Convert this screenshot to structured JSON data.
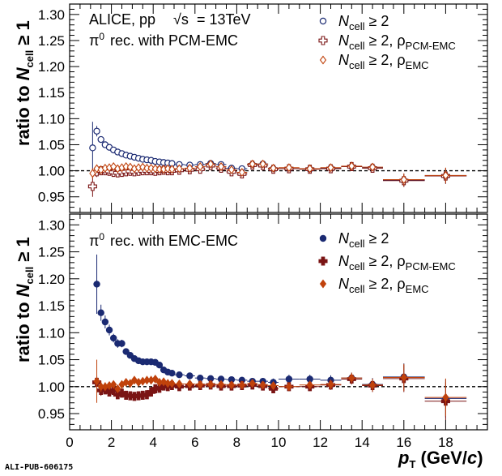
{
  "footer": "ALI-PUB-606175",
  "colors": {
    "blue": "#1b2a72",
    "maroon": "#7a1414",
    "orange": "#c0420c",
    "axis": "#000000"
  },
  "chart_data": [
    {
      "type": "scatter",
      "panel": "top",
      "annotations": [
        "ALICE, pp",
        "= 13TeV",
        "rec. with PCM-EMC"
      ],
      "ylabel": "ratio to N_cell ≥ 1",
      "xlim": [
        0,
        20
      ],
      "ylim": [
        0.92,
        1.32
      ],
      "yticks": [
        0.95,
        1.0,
        1.05,
        1.1,
        1.15,
        1.2,
        1.25,
        1.3
      ],
      "ytick_labels": [
        "0.95",
        "1.00",
        "1.05",
        "1.10",
        "1.15",
        "1.20",
        "1.25",
        "1.30"
      ],
      "reference_line": 1.0,
      "legend_position": "top-right",
      "series": [
        {
          "name": "N_cell ≥ 2",
          "marker": "open-circle",
          "color": "blue",
          "x": [
            1.1,
            1.3,
            1.5,
            1.7,
            1.9,
            2.1,
            2.3,
            2.5,
            2.7,
            2.9,
            3.1,
            3.3,
            3.5,
            3.7,
            3.9,
            4.1,
            4.3,
            4.5,
            4.7,
            4.9,
            5.25,
            5.75,
            6.25,
            6.75,
            7.25,
            7.75,
            8.25,
            8.75,
            9.25,
            9.75,
            10.5,
            11.5,
            12.5,
            13.5,
            14.5,
            16,
            18
          ],
          "y": [
            1.044,
            1.076,
            1.06,
            1.05,
            1.045,
            1.04,
            1.036,
            1.033,
            1.03,
            1.028,
            1.026,
            1.024,
            1.022,
            1.021,
            1.02,
            1.018,
            1.017,
            1.016,
            1.015,
            1.014,
            1.012,
            1.011,
            1.012,
            1.014,
            1.012,
            1.005,
            1.004,
            1.012,
            1.013,
            1.004,
            1.004,
            1.003,
            1.005,
            1.008,
            1.006,
            0.982,
            0.99
          ],
          "yerr": [
            0.05,
            0.01,
            0.006,
            0.005,
            0.004,
            0.004,
            0.004,
            0.004,
            0.004,
            0.004,
            0.004,
            0.004,
            0.004,
            0.004,
            0.004,
            0.004,
            0.004,
            0.004,
            0.004,
            0.004,
            0.004,
            0.004,
            0.004,
            0.005,
            0.005,
            0.006,
            0.006,
            0.007,
            0.007,
            0.007,
            0.006,
            0.006,
            0.007,
            0.008,
            0.008,
            0.012,
            0.015
          ]
        },
        {
          "name": "N_cell ≥ 2, ρ_PCM-EMC",
          "marker": "open-cross",
          "color": "maroon",
          "x": [
            1.1,
            1.3,
            1.5,
            1.7,
            1.9,
            2.1,
            2.3,
            2.5,
            2.7,
            2.9,
            3.1,
            3.3,
            3.5,
            3.7,
            3.9,
            4.1,
            4.3,
            4.5,
            4.7,
            4.9,
            5.25,
            5.75,
            6.25,
            6.75,
            7.25,
            7.75,
            8.25,
            8.75,
            9.25,
            9.75,
            10.5,
            11.5,
            12.5,
            13.5,
            14.5,
            16,
            18
          ],
          "y": [
            0.97,
            0.998,
            1.0,
            1.0,
            0.999,
            0.997,
            0.996,
            0.997,
            0.998,
            0.999,
            0.998,
            0.999,
            1.0,
            1.0,
            1.0,
            0.999,
            1.0,
            1.001,
            1.0,
            1.0,
            1.001,
            1.002,
            1.003,
            1.01,
            1.005,
            0.998,
            0.994,
            1.011,
            1.01,
            1.003,
            1.004,
            1.003,
            1.004,
            1.008,
            1.005,
            0.981,
            0.99
          ],
          "yerr": [
            0.02,
            0.01,
            0.006,
            0.005,
            0.004,
            0.004,
            0.004,
            0.004,
            0.004,
            0.004,
            0.004,
            0.004,
            0.004,
            0.004,
            0.004,
            0.004,
            0.004,
            0.004,
            0.004,
            0.004,
            0.004,
            0.004,
            0.004,
            0.005,
            0.005,
            0.006,
            0.006,
            0.007,
            0.007,
            0.007,
            0.006,
            0.006,
            0.007,
            0.008,
            0.008,
            0.012,
            0.015
          ]
        },
        {
          "name": "N_cell ≥ 2, ρ_EMC",
          "marker": "open-diamond",
          "color": "orange",
          "x": [
            1.1,
            1.3,
            1.5,
            1.7,
            1.9,
            2.1,
            2.3,
            2.5,
            2.7,
            2.9,
            3.1,
            3.3,
            3.5,
            3.7,
            3.9,
            4.1,
            4.3,
            4.5,
            4.7,
            4.9,
            5.25,
            5.75,
            6.25,
            6.75,
            7.25,
            7.75,
            8.25,
            8.75,
            9.25,
            9.75,
            10.5,
            11.5,
            12.5,
            13.5,
            14.5,
            16,
            18
          ],
          "y": [
            0.995,
            1.004,
            1.002,
            1.005,
            1.006,
            1.008,
            1.004,
            1.006,
            1.008,
            1.007,
            1.004,
            1.006,
            1.007,
            1.005,
            1.005,
            1.004,
            1.003,
            1.003,
            1.004,
            1.003,
            1.004,
            1.005,
            1.008,
            1.013,
            1.008,
            1.002,
            0.997,
            1.013,
            1.013,
            1.005,
            1.006,
            1.004,
            1.006,
            1.009,
            1.007,
            0.983,
            0.991
          ],
          "yerr": [
            0.01,
            0.008,
            0.006,
            0.005,
            0.004,
            0.004,
            0.004,
            0.004,
            0.004,
            0.004,
            0.004,
            0.004,
            0.004,
            0.004,
            0.004,
            0.004,
            0.004,
            0.004,
            0.004,
            0.004,
            0.004,
            0.004,
            0.004,
            0.005,
            0.005,
            0.006,
            0.006,
            0.007,
            0.007,
            0.007,
            0.006,
            0.006,
            0.007,
            0.008,
            0.008,
            0.012,
            0.015
          ]
        }
      ]
    },
    {
      "type": "scatter",
      "panel": "bottom",
      "annotations": [
        "rec. with EMC-EMC"
      ],
      "xlabel": "p_T (GeV/c)",
      "ylabel": "ratio to N_cell ≥ 1",
      "xlim": [
        0,
        20
      ],
      "ylim": [
        0.92,
        1.32
      ],
      "xticks": [
        0,
        2,
        4,
        6,
        8,
        10,
        12,
        14,
        16,
        18
      ],
      "xtick_labels": [
        "0",
        "2",
        "4",
        "6",
        "8",
        "10",
        "12",
        "14",
        "16",
        "18"
      ],
      "yticks": [
        0.95,
        1.0,
        1.05,
        1.1,
        1.15,
        1.2,
        1.25,
        1.3
      ],
      "ytick_labels": [
        "0.95",
        "1.00",
        "1.05",
        "1.10",
        "1.15",
        "1.20",
        "1.25",
        "1.30"
      ],
      "reference_line": 1.0,
      "legend_position": "top-right",
      "series": [
        {
          "name": "N_cell ≥ 2",
          "marker": "filled-circle",
          "color": "blue",
          "x": [
            1.3,
            1.5,
            1.7,
            1.9,
            2.1,
            2.3,
            2.5,
            2.7,
            2.9,
            3.1,
            3.3,
            3.5,
            3.7,
            3.9,
            4.1,
            4.3,
            4.5,
            4.7,
            4.9,
            5.25,
            5.75,
            6.25,
            6.75,
            7.25,
            7.75,
            8.25,
            8.75,
            9.25,
            9.75,
            10.5,
            11.5,
            12.5,
            13.5,
            14.5,
            16,
            18
          ],
          "y": [
            1.19,
            1.137,
            1.12,
            1.105,
            1.09,
            1.08,
            1.08,
            1.065,
            1.058,
            1.052,
            1.048,
            1.046,
            1.046,
            1.046,
            1.045,
            1.04,
            1.031,
            1.027,
            1.025,
            1.022,
            1.02,
            1.016,
            1.015,
            1.014,
            1.013,
            1.012,
            1.01,
            1.01,
            1.008,
            1.014,
            1.014,
            1.012,
            1.016,
            1.004,
            1.018,
            0.978
          ],
          "yerr": [
            0.055,
            0.015,
            0.012,
            0.01,
            0.008,
            0.008,
            0.007,
            0.006,
            0.006,
            0.005,
            0.005,
            0.005,
            0.005,
            0.005,
            0.005,
            0.005,
            0.005,
            0.005,
            0.005,
            0.005,
            0.005,
            0.005,
            0.005,
            0.005,
            0.005,
            0.006,
            0.006,
            0.006,
            0.007,
            0.008,
            0.008,
            0.009,
            0.01,
            0.012,
            0.025,
            0.035
          ]
        },
        {
          "name": "N_cell ≥ 2, ρ_PCM-EMC",
          "marker": "filled-cross",
          "color": "maroon",
          "x": [
            1.3,
            1.5,
            1.7,
            1.9,
            2.1,
            2.3,
            2.5,
            2.7,
            2.9,
            3.1,
            3.3,
            3.5,
            3.7,
            3.9,
            4.1,
            4.3,
            4.5,
            4.7,
            4.9,
            5.25,
            5.75,
            6.25,
            6.75,
            7.25,
            7.75,
            8.25,
            8.75,
            9.25,
            9.75,
            10.5,
            11.5,
            12.5,
            13.5,
            14.5,
            16,
            18
          ],
          "y": [
            1.008,
            0.993,
            0.994,
            0.99,
            0.993,
            0.985,
            0.988,
            0.984,
            0.983,
            0.982,
            0.983,
            0.984,
            0.985,
            0.99,
            0.996,
            0.997,
            1.001,
            1.0,
            1.002,
            1.0,
            1.001,
            1.002,
            1.003,
            1.001,
            1.001,
            1.002,
            1.003,
            1.001,
            0.996,
            1.0,
            1.0,
            1.003,
            1.014,
            1.002,
            1.015,
            0.973
          ],
          "yerr": [
            0.012,
            0.01,
            0.008,
            0.007,
            0.006,
            0.006,
            0.006,
            0.005,
            0.005,
            0.005,
            0.005,
            0.005,
            0.005,
            0.005,
            0.005,
            0.005,
            0.005,
            0.005,
            0.005,
            0.005,
            0.005,
            0.005,
            0.005,
            0.005,
            0.005,
            0.006,
            0.006,
            0.006,
            0.007,
            0.008,
            0.008,
            0.009,
            0.01,
            0.012,
            0.025,
            0.035
          ]
        },
        {
          "name": "N_cell ≥ 2, ρ_EMC",
          "marker": "filled-diamond",
          "color": "orange",
          "x": [
            1.3,
            1.5,
            1.7,
            1.9,
            2.1,
            2.3,
            2.5,
            2.7,
            2.9,
            3.1,
            3.3,
            3.5,
            3.7,
            3.9,
            4.1,
            4.3,
            4.5,
            4.7,
            4.9,
            5.25,
            5.75,
            6.25,
            6.75,
            7.25,
            7.75,
            8.25,
            8.75,
            9.25,
            9.75,
            10.5,
            11.5,
            12.5,
            13.5,
            14.5,
            16,
            18
          ],
          "y": [
            1.01,
            1.0,
            1.0,
            1.002,
            1.004,
            0.996,
            1.004,
            1.008,
            1.006,
            1.012,
            1.008,
            1.01,
            1.012,
            1.012,
            1.014,
            1.008,
            1.009,
            1.006,
            1.006,
            1.005,
            1.005,
            1.004,
            1.004,
            1.004,
            1.003,
            1.003,
            1.006,
            1.003,
            1.002,
            1.0,
            1.003,
            1.004,
            1.016,
            1.003,
            1.017,
            0.98
          ],
          "yerr": [
            0.04,
            0.01,
            0.008,
            0.007,
            0.006,
            0.006,
            0.006,
            0.005,
            0.005,
            0.005,
            0.005,
            0.005,
            0.005,
            0.005,
            0.005,
            0.005,
            0.005,
            0.005,
            0.005,
            0.005,
            0.005,
            0.005,
            0.005,
            0.005,
            0.005,
            0.006,
            0.006,
            0.006,
            0.007,
            0.008,
            0.008,
            0.009,
            0.01,
            0.012,
            0.025,
            0.035
          ]
        }
      ]
    }
  ]
}
